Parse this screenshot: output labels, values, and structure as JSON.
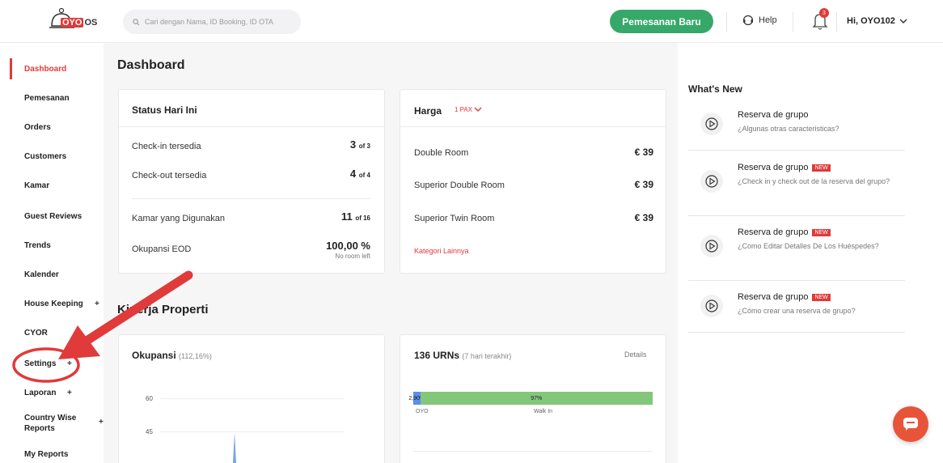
{
  "header": {
    "logo_text": "OYO",
    "logo_suffix": "OS",
    "search_placeholder": "Cari dengan Nama, ID Booking, ID OTA",
    "new_booking_label": "Pemesanan Baru",
    "help_label": "Help",
    "notification_count": "3",
    "user_label": "Hi, OYO102"
  },
  "sidebar": {
    "items": [
      {
        "label": "Dashboard"
      },
      {
        "label": "Pemesanan"
      },
      {
        "label": "Orders"
      },
      {
        "label": "Customers"
      },
      {
        "label": "Kamar"
      },
      {
        "label": "Guest Reviews"
      },
      {
        "label": "Trends"
      },
      {
        "label": "Kalender"
      },
      {
        "label": "House Keeping"
      },
      {
        "label": "CYOR"
      },
      {
        "label": "Settings"
      },
      {
        "label": "Laporan"
      },
      {
        "label": "Country Wise Reports"
      },
      {
        "label": "My Reports"
      }
    ],
    "expand_symbol": "+"
  },
  "main": {
    "title": "Dashboard",
    "status": {
      "title": "Status Hari Ini",
      "rows": [
        {
          "label": "Check-in tersedia",
          "value": "3",
          "of": "of 3"
        },
        {
          "label": "Check-out tersedia",
          "value": "4",
          "of": "of 4"
        },
        {
          "label": "Kamar yang Digunakan",
          "value": "11",
          "of": "of 16"
        },
        {
          "label": "Okupansi EOD",
          "value": "100,00 %",
          "sub": "No room left"
        }
      ]
    },
    "harga": {
      "title": "Harga",
      "pax": "1 PAX",
      "rows": [
        {
          "label": "Double Room",
          "price": "€ 39"
        },
        {
          "label": "Superior Double Room",
          "price": "€ 39"
        },
        {
          "label": "Superior Twin Room",
          "price": "€ 39"
        }
      ],
      "more_link": "Kategori Lainnya"
    },
    "section2_title": "Kinerja Properti",
    "okupansi": {
      "title": "Okupansi",
      "pct": "(112,16%)",
      "y_ticks": [
        "60",
        "45"
      ]
    },
    "urn": {
      "title": "136 URNs",
      "sub": "(7 hari terakhir)",
      "details_link": "Details",
      "segments": [
        {
          "pct": "2,90%",
          "value": 2.9,
          "name": "OYO",
          "color": "#5b8def"
        },
        {
          "pct": "97%",
          "value": 97.1,
          "name": "Walk In",
          "color": "#82c77b"
        }
      ]
    }
  },
  "whats_new": {
    "title": "What's New",
    "new_badge": "NEW",
    "items": [
      {
        "title": "Reserva de grupo",
        "desc": "¿Algunas otras caracteristicas?",
        "is_new": false
      },
      {
        "title": "Reserva de grupo",
        "desc": "¿Check in y check out de la reserva del grupo?",
        "is_new": true
      },
      {
        "title": "Reserva de grupo",
        "desc": "¿Como Editar Detalles De Los Huéspedes?",
        "is_new": true
      },
      {
        "title": "Reserva de grupo",
        "desc": "¿Cómo crear una reserva de grupo?",
        "is_new": true
      }
    ]
  },
  "colors": {
    "accent": "#e03a3a",
    "primary_button": "#36a86a",
    "annotation": "#e03a3a"
  }
}
